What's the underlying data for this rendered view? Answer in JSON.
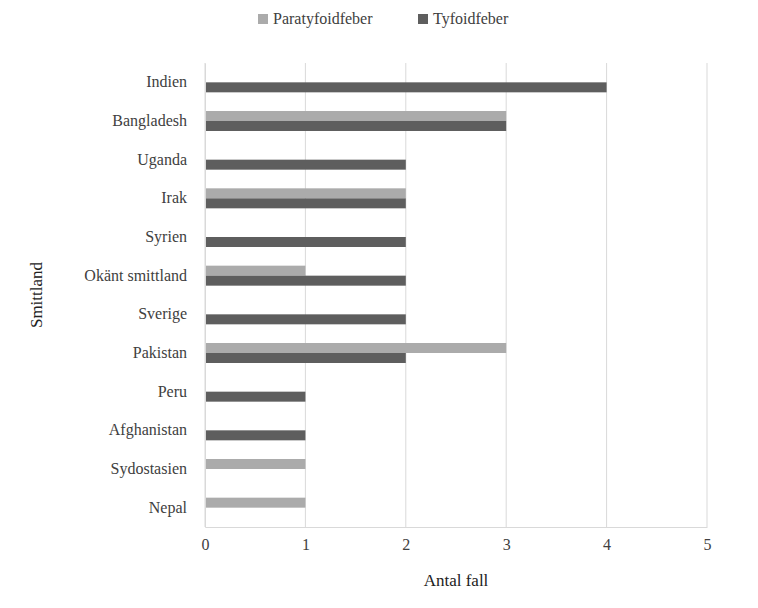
{
  "chart_data": {
    "type": "bar",
    "orientation": "horizontal",
    "categories": [
      "Indien",
      "Bangladesh",
      "Uganda",
      "Irak",
      "Syrien",
      "Okänt smittland",
      "Sverige",
      "Pakistan",
      "Peru",
      "Afghanistan",
      "Sydostasien",
      "Nepal"
    ],
    "series": [
      {
        "name": "Paratyfoidfeber",
        "color": "#ababab",
        "values": [
          0,
          3,
          0,
          2,
          0,
          1,
          0,
          3,
          0,
          0,
          1,
          1
        ]
      },
      {
        "name": "Tyfoidfeber",
        "color": "#5e5e5e",
        "values": [
          4,
          3,
          2,
          2,
          2,
          2,
          2,
          2,
          1,
          1,
          0,
          0
        ]
      }
    ],
    "x_label": "Antal fall",
    "y_label": "Smittland",
    "xlim": [
      0,
      5
    ],
    "xticks": [
      0,
      1,
      2,
      3,
      4,
      5
    ],
    "grid": true,
    "legend": "top"
  }
}
